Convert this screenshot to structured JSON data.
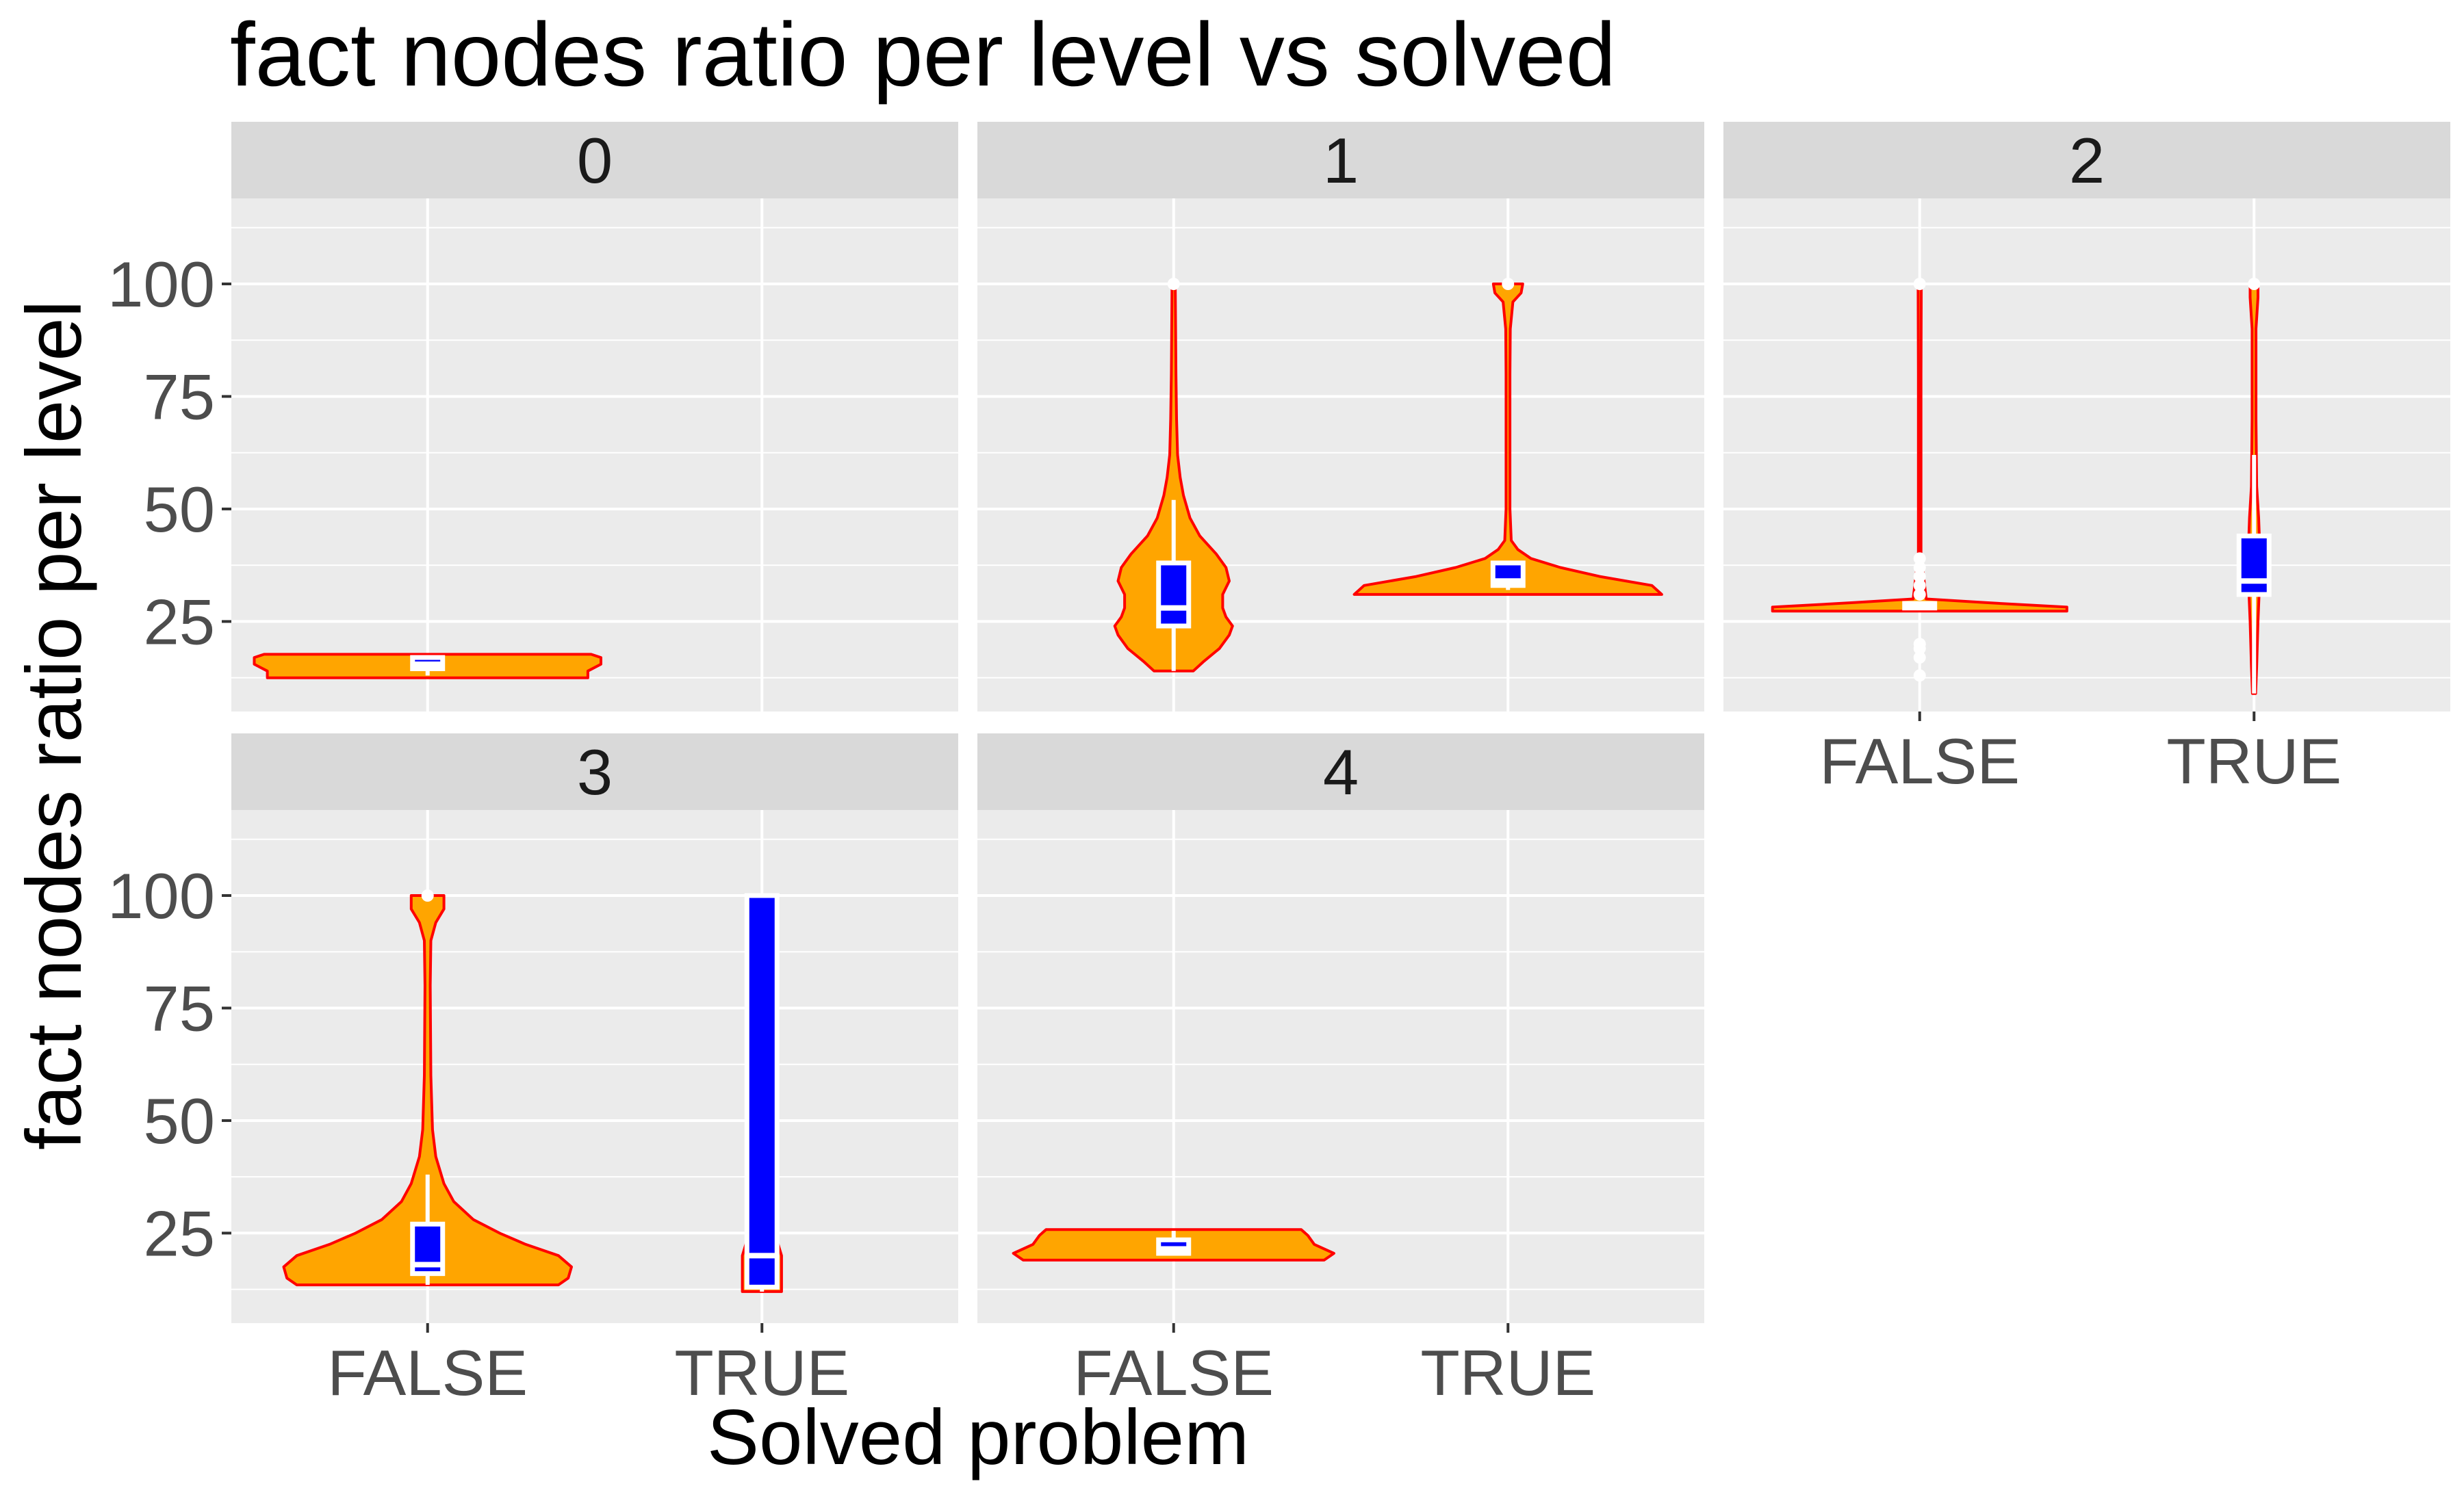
{
  "chart_data": {
    "type": "violin",
    "title": "fact nodes ratio per level vs solved",
    "xlabel": "Solved problem",
    "ylabel": "fact nodes ratio per level",
    "categories": [
      "FALSE",
      "TRUE"
    ],
    "ylim": [
      5,
      119
    ],
    "yticks": [
      25,
      50,
      75,
      100
    ],
    "grid": true,
    "facet_variable_levels": [
      "0",
      "1",
      "2",
      "3",
      "4"
    ],
    "colors": {
      "violin_fill": "#FFA500",
      "violin_outline": "#FF0000",
      "box_fill": "#0000FF",
      "box_outline": "#FFFFFF",
      "panel_background": "#EBEBEB",
      "strip_background": "#D9D9D9",
      "grid": "#FFFFFF"
    },
    "panels": [
      {
        "label": "0",
        "groups": [
          {
            "category": "FALSE",
            "violin": [
              [
                12.5,
                0.49
              ],
              [
                14,
                0.49
              ],
              [
                15.5,
                0.53
              ],
              [
                17,
                0.53
              ],
              [
                17.7,
                0.5
              ]
            ],
            "box": {
              "min": 13,
              "q1": 14.5,
              "median": 15.5,
              "q3": 17,
              "max": 17.5,
              "outliers": []
            }
          }
        ]
      },
      {
        "label": "1",
        "groups": [
          {
            "category": "FALSE",
            "violin": [
              [
                14,
                0.06
              ],
              [
                16,
                0.09
              ],
              [
                19,
                0.14
              ],
              [
                22,
                0.17
              ],
              [
                24,
                0.18
              ],
              [
                26,
                0.16
              ],
              [
                28,
                0.15
              ],
              [
                31,
                0.15
              ],
              [
                34,
                0.17
              ],
              [
                37,
                0.16
              ],
              [
                40,
                0.13
              ],
              [
                44,
                0.08
              ],
              [
                48,
                0.05
              ],
              [
                53,
                0.03
              ],
              [
                57,
                0.02
              ],
              [
                62,
                0.012
              ],
              [
                70,
                0.009
              ],
              [
                80,
                0.007
              ],
              [
                90,
                0.006
              ],
              [
                100,
                0.005
              ]
            ],
            "box": {
              "min": 14,
              "q1": 24,
              "median": 28,
              "q3": 38,
              "max": 52,
              "outliers": [
                100
              ]
            }
          },
          {
            "category": "TRUE",
            "violin": [
              [
                31,
                0.47
              ],
              [
                33,
                0.44
              ],
              [
                35,
                0.28
              ],
              [
                37,
                0.16
              ],
              [
                39,
                0.07
              ],
              [
                41,
                0.03
              ],
              [
                43,
                0.01
              ],
              [
                50,
                0.006
              ],
              [
                60,
                0.006
              ],
              [
                70,
                0.006
              ],
              [
                80,
                0.006
              ],
              [
                90,
                0.007
              ],
              [
                96,
                0.015
              ],
              [
                98,
                0.04
              ],
              [
                100,
                0.045
              ]
            ],
            "box": {
              "min": 32,
              "q1": 33,
              "median": 34,
              "q3": 38,
              "max": 38,
              "outliers": [
                100
              ]
            }
          }
        ]
      },
      {
        "label": "2",
        "groups": [
          {
            "category": "FALSE",
            "violin": [
              [
                27.3,
                0.45
              ],
              [
                28.2,
                0.45
              ],
              [
                29.2,
                0.2
              ],
              [
                30,
                0.02
              ],
              [
                40,
                0.004
              ],
              [
                60,
                0.004
              ],
              [
                80,
                0.004
              ],
              [
                100,
                0.005
              ]
            ],
            "box": {
              "min": 28,
              "q1": 28,
              "median": 28.5,
              "q3": 29,
              "max": 29,
              "outliers": [
                13,
                17,
                19,
                20,
                31,
                33,
                35,
                37,
                39,
                100
              ]
            }
          },
          {
            "category": "TRUE",
            "violin": [
              [
                9,
                0.005
              ],
              [
                15,
                0.008
              ],
              [
                25,
                0.012
              ],
              [
                32,
                0.016
              ],
              [
                40,
                0.018
              ],
              [
                48,
                0.014
              ],
              [
                55,
                0.008
              ],
              [
                70,
                0.006
              ],
              [
                90,
                0.006
              ],
              [
                97,
                0.012
              ],
              [
                100,
                0.012
              ]
            ],
            "box": {
              "min": 9,
              "q1": 31,
              "median": 34,
              "q3": 44,
              "max": 62,
              "outliers": [
                100
              ]
            }
          }
        ]
      },
      {
        "label": "3",
        "groups": [
          {
            "category": "FALSE",
            "violin": [
              [
                13.5,
                0.4
              ],
              [
                15,
                0.43
              ],
              [
                17.5,
                0.44
              ],
              [
                20,
                0.4
              ],
              [
                22.5,
                0.3
              ],
              [
                25,
                0.22
              ],
              [
                28,
                0.14
              ],
              [
                32,
                0.08
              ],
              [
                36,
                0.05
              ],
              [
                42,
                0.025
              ],
              [
                48,
                0.015
              ],
              [
                60,
                0.01
              ],
              [
                80,
                0.008
              ],
              [
                90,
                0.01
              ],
              [
                94,
                0.025
              ],
              [
                97,
                0.05
              ],
              [
                100,
                0.05
              ]
            ],
            "box": {
              "min": 13.5,
              "q1": 16,
              "median": 18,
              "q3": 27,
              "max": 38,
              "outliers": [
                100
              ]
            }
          },
          {
            "category": "TRUE",
            "violin": [
              [
                12,
                0.06
              ],
              [
                20,
                0.06
              ],
              [
                26,
                0.035
              ],
              [
                35,
                0.02
              ],
              [
                50,
                0.02
              ],
              [
                75,
                0.02
              ],
              [
                100,
                0.02
              ]
            ],
            "box": {
              "min": 12,
              "q1": 13,
              "median": 20,
              "q3": 100,
              "max": 100,
              "outliers": []
            }
          }
        ]
      },
      {
        "label": "4",
        "groups": [
          {
            "category": "FALSE",
            "violin": [
              [
                19,
                0.46
              ],
              [
                20.5,
                0.49
              ],
              [
                22.5,
                0.43
              ],
              [
                24.5,
                0.41
              ],
              [
                25.8,
                0.39
              ]
            ],
            "box": {
              "min": 20,
              "q1": 20.5,
              "median": 21.5,
              "q3": 23.5,
              "max": 25.5,
              "outliers": []
            }
          }
        ]
      }
    ]
  }
}
